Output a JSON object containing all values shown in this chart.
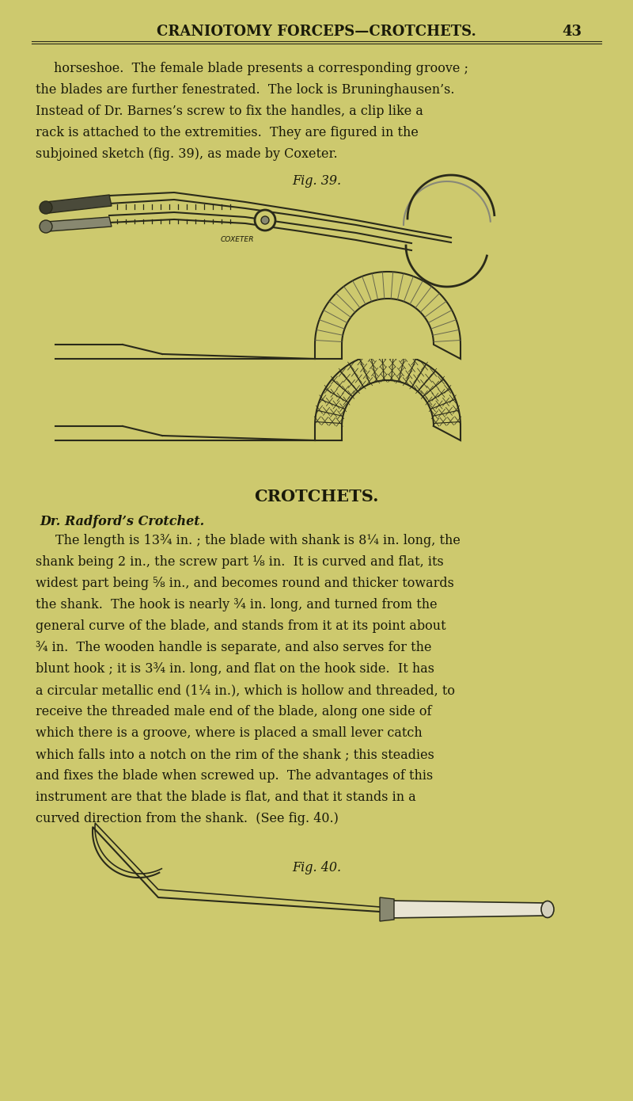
{
  "bg_color": "#cdc96e",
  "header_text": "CRANIOTOMY FORCEPS—CROTCHETS.",
  "header_page": "43",
  "body_text_1": "horseshoe.  The female blade presents a corresponding groove ;\nthe blades are further fenestrated.  The lock is Bruninghausen’s.\nInstead of Dr. Barnes’s screw to fix the handles, a clip like a\nrack is attached to the extremities.  They are figured in the\nsubjoined sketch (fig. 39), as made by Coxeter.",
  "fig39_label": "Fig. 39.",
  "crotchets_heading": "CROTCHETS.",
  "dr_radford_heading": "Dr. Radford’s Crotchet.",
  "body_text_2": "The length is 13¾ in. ; the blade with shank is 8¼ in. long, the\nshank being 2 in., the screw part ⅛ in.  It is curved and flat, its\nwidest part being ⅝ in., and becomes round and thicker towards\nthe shank.  The hook is nearly ¾ in. long, and turned from the\ngeneral curve of the blade, and stands from it at its point about\n¾ in.  The wooden handle is separate, and also serves for the\nblunt hook ; it is 3¾ in. long, and flat on the hook side.  It has\na circular metallic end (1¼ in.), which is hollow and threaded, to\nreceive the threaded male end of the blade, along one side of\nwhich there is a groove, where is placed a small lever catch\nwhich falls into a notch on the rim of the shank ; this steadies\nand fixes the blade when screwed up.  The advantages of this\ninstrument are that the blade is flat, and that it stands in a\ncurved direction from the shank.  (See fig. 40.)",
  "fig40_label": "Fig. 40.",
  "text_color": "#1a1a0a",
  "line_color": "#2a2a1a"
}
